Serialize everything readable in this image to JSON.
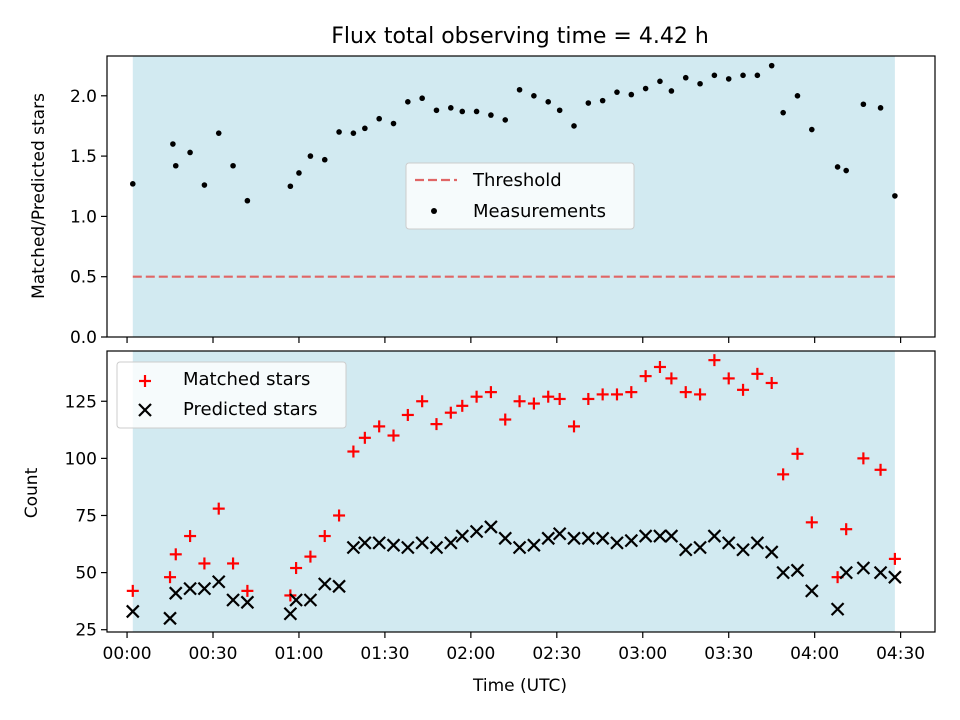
{
  "colors": {
    "background": "#ffffff",
    "observing_span": "#add8e6",
    "threshold": "#e06666",
    "measurements": "#000000",
    "matched": "#ff0000",
    "predicted": "#000000"
  },
  "chart_data": [
    {
      "type": "scatter",
      "title": "Flux total observing time = 4.42 h",
      "xlabel": "",
      "ylabel": "Matched/Predicted stars",
      "xlim": [
        "23:53",
        "04:42"
      ],
      "ylim": [
        0,
        2.33
      ],
      "yticks": [
        {
          "value": 0,
          "label": "0.0"
        },
        {
          "value": 0.5,
          "label": "0.5"
        },
        {
          "value": 1.0,
          "label": "1.0"
        },
        {
          "value": 1.5,
          "label": "1.5"
        },
        {
          "value": 2.0,
          "label": "2.0"
        }
      ],
      "observing_span": [
        "00:02",
        "04:28"
      ],
      "grid": false,
      "legend_position": "center",
      "threshold": {
        "name": "Threshold",
        "value": 0.5,
        "style": "dashed"
      },
      "series": [
        {
          "name": "Measurements",
          "marker": "dot",
          "points": [
            [
              "00:02",
              1.27
            ],
            [
              "00:16",
              1.6
            ],
            [
              "00:17",
              1.42
            ],
            [
              "00:22",
              1.53
            ],
            [
              "00:27",
              1.26
            ],
            [
              "00:32",
              1.69
            ],
            [
              "00:37",
              1.42
            ],
            [
              "00:42",
              1.13
            ],
            [
              "00:57",
              1.25
            ],
            [
              "01:00",
              1.36
            ],
            [
              "01:04",
              1.5
            ],
            [
              "01:09",
              1.47
            ],
            [
              "01:14",
              1.7
            ],
            [
              "01:19",
              1.69
            ],
            [
              "01:23",
              1.73
            ],
            [
              "01:28",
              1.81
            ],
            [
              "01:33",
              1.77
            ],
            [
              "01:38",
              1.95
            ],
            [
              "01:43",
              1.98
            ],
            [
              "01:48",
              1.88
            ],
            [
              "01:53",
              1.9
            ],
            [
              "01:57",
              1.87
            ],
            [
              "02:02",
              1.87
            ],
            [
              "02:07",
              1.84
            ],
            [
              "02:12",
              1.8
            ],
            [
              "02:17",
              2.05
            ],
            [
              "02:22",
              2.0
            ],
            [
              "02:27",
              1.95
            ],
            [
              "02:31",
              1.88
            ],
            [
              "02:36",
              1.75
            ],
            [
              "02:41",
              1.94
            ],
            [
              "02:46",
              1.96
            ],
            [
              "02:51",
              2.03
            ],
            [
              "02:56",
              2.01
            ],
            [
              "03:01",
              2.06
            ],
            [
              "03:06",
              2.12
            ],
            [
              "03:10",
              2.04
            ],
            [
              "03:15",
              2.15
            ],
            [
              "03:20",
              2.1
            ],
            [
              "03:25",
              2.17
            ],
            [
              "03:30",
              2.14
            ],
            [
              "03:35",
              2.17
            ],
            [
              "03:40",
              2.17
            ],
            [
              "03:45",
              2.25
            ],
            [
              "03:49",
              1.86
            ],
            [
              "03:54",
              2.0
            ],
            [
              "03:59",
              1.72
            ],
            [
              "04:08",
              1.41
            ],
            [
              "04:11",
              1.38
            ],
            [
              "04:17",
              1.93
            ],
            [
              "04:23",
              1.9
            ],
            [
              "04:28",
              1.17
            ]
          ]
        }
      ]
    },
    {
      "type": "scatter",
      "title": "",
      "xlabel": "Time (UTC)",
      "ylabel": "Count",
      "xlim": [
        "23:53",
        "04:42"
      ],
      "ylim": [
        24,
        147
      ],
      "xticks": [
        "00:00",
        "00:30",
        "01:00",
        "01:30",
        "02:00",
        "02:30",
        "03:00",
        "03:30",
        "04:00",
        "04:30"
      ],
      "yticks": [
        {
          "value": 25,
          "label": "25"
        },
        {
          "value": 50,
          "label": "50"
        },
        {
          "value": 75,
          "label": "75"
        },
        {
          "value": 100,
          "label": "100"
        },
        {
          "value": 125,
          "label": "125"
        }
      ],
      "observing_span": [
        "00:02",
        "04:28"
      ],
      "grid": false,
      "legend_position": "upper-left",
      "series": [
        {
          "name": "Matched stars",
          "marker": "plus",
          "points": [
            [
              "00:02",
              42
            ],
            [
              "00:15",
              48
            ],
            [
              "00:17",
              58
            ],
            [
              "00:22",
              66
            ],
            [
              "00:27",
              54
            ],
            [
              "00:32",
              78
            ],
            [
              "00:37",
              54
            ],
            [
              "00:42",
              42
            ],
            [
              "00:57",
              40
            ],
            [
              "00:59",
              52
            ],
            [
              "01:04",
              57
            ],
            [
              "01:09",
              66
            ],
            [
              "01:14",
              75
            ],
            [
              "01:19",
              103
            ],
            [
              "01:23",
              109
            ],
            [
              "01:28",
              114
            ],
            [
              "01:33",
              110
            ],
            [
              "01:38",
              119
            ],
            [
              "01:43",
              125
            ],
            [
              "01:48",
              115
            ],
            [
              "01:53",
              120
            ],
            [
              "01:57",
              123
            ],
            [
              "02:02",
              127
            ],
            [
              "02:07",
              129
            ],
            [
              "02:12",
              117
            ],
            [
              "02:17",
              125
            ],
            [
              "02:22",
              124
            ],
            [
              "02:27",
              127
            ],
            [
              "02:31",
              126
            ],
            [
              "02:36",
              114
            ],
            [
              "02:41",
              126
            ],
            [
              "02:46",
              128
            ],
            [
              "02:51",
              128
            ],
            [
              "02:56",
              129
            ],
            [
              "03:01",
              136
            ],
            [
              "03:06",
              140
            ],
            [
              "03:10",
              135
            ],
            [
              "03:15",
              129
            ],
            [
              "03:20",
              128
            ],
            [
              "03:25",
              143
            ],
            [
              "03:30",
              135
            ],
            [
              "03:35",
              130
            ],
            [
              "03:40",
              137
            ],
            [
              "03:45",
              133
            ],
            [
              "03:49",
              93
            ],
            [
              "03:54",
              102
            ],
            [
              "03:59",
              72
            ],
            [
              "04:08",
              48
            ],
            [
              "04:11",
              69
            ],
            [
              "04:17",
              100
            ],
            [
              "04:23",
              95
            ],
            [
              "04:28",
              56
            ]
          ]
        },
        {
          "name": "Predicted stars",
          "marker": "x",
          "points": [
            [
              "00:02",
              33
            ],
            [
              "00:15",
              30
            ],
            [
              "00:17",
              41
            ],
            [
              "00:22",
              43
            ],
            [
              "00:27",
              43
            ],
            [
              "00:32",
              46
            ],
            [
              "00:37",
              38
            ],
            [
              "00:42",
              37
            ],
            [
              "00:57",
              32
            ],
            [
              "00:59",
              38
            ],
            [
              "01:04",
              38
            ],
            [
              "01:09",
              45
            ],
            [
              "01:14",
              44
            ],
            [
              "01:19",
              61
            ],
            [
              "01:23",
              63
            ],
            [
              "01:28",
              63
            ],
            [
              "01:33",
              62
            ],
            [
              "01:38",
              61
            ],
            [
              "01:43",
              63
            ],
            [
              "01:48",
              61
            ],
            [
              "01:53",
              63
            ],
            [
              "01:57",
              66
            ],
            [
              "02:02",
              68
            ],
            [
              "02:07",
              70
            ],
            [
              "02:12",
              65
            ],
            [
              "02:17",
              61
            ],
            [
              "02:22",
              62
            ],
            [
              "02:27",
              65
            ],
            [
              "02:31",
              67
            ],
            [
              "02:36",
              65
            ],
            [
              "02:41",
              65
            ],
            [
              "02:46",
              65
            ],
            [
              "02:51",
              63
            ],
            [
              "02:56",
              64
            ],
            [
              "03:01",
              66
            ],
            [
              "03:06",
              66
            ],
            [
              "03:10",
              66
            ],
            [
              "03:15",
              60
            ],
            [
              "03:20",
              61
            ],
            [
              "03:25",
              66
            ],
            [
              "03:30",
              63
            ],
            [
              "03:35",
              60
            ],
            [
              "03:40",
              63
            ],
            [
              "03:45",
              59
            ],
            [
              "03:49",
              50
            ],
            [
              "03:54",
              51
            ],
            [
              "03:59",
              42
            ],
            [
              "04:08",
              34
            ],
            [
              "04:11",
              50
            ],
            [
              "04:17",
              52
            ],
            [
              "04:23",
              50
            ],
            [
              "04:28",
              48
            ]
          ]
        }
      ]
    }
  ]
}
